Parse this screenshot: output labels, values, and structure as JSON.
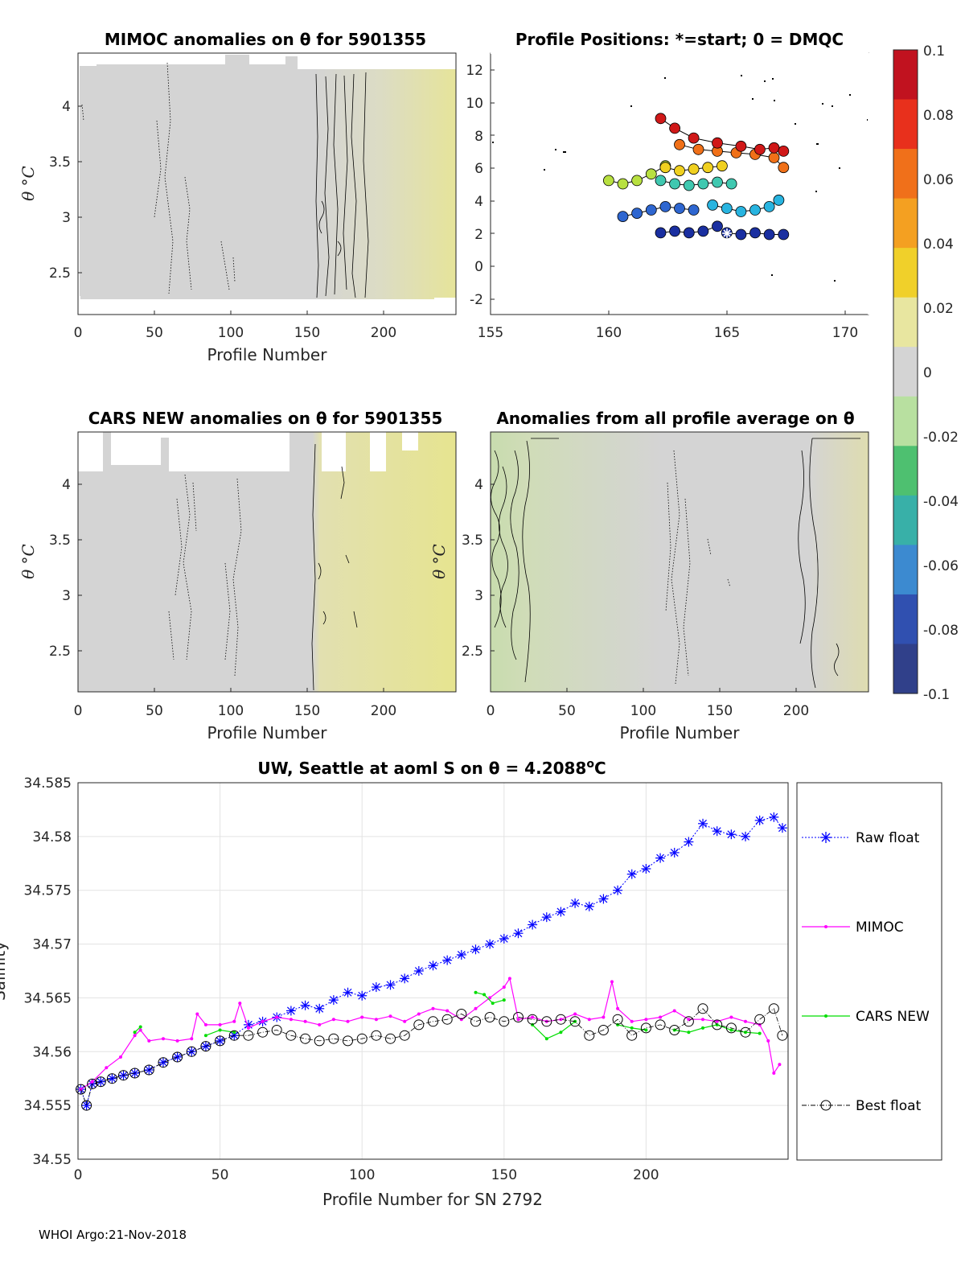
{
  "panels": {
    "mimoc": {
      "title": "MIMOC anomalies on θ  for 5901355",
      "xlabel": "Profile Number",
      "ylabel": "θ °C",
      "xticks": [
        "0",
        "50",
        "100",
        "150",
        "200"
      ],
      "yticks": [
        "2.5",
        "3",
        "3.5",
        "4"
      ]
    },
    "positions": {
      "title": "Profile Positions: *=start; 0 = DMQC",
      "xticks": [
        "155",
        "160",
        "165",
        "170"
      ],
      "yticks": [
        "-2",
        "0",
        "2",
        "4",
        "6",
        "8",
        "10",
        "12"
      ]
    },
    "cars": {
      "title": "CARS NEW anomalies on θ for 5901355",
      "xlabel": "Profile Number",
      "ylabel": "θ °C",
      "xticks": [
        "0",
        "50",
        "100",
        "150",
        "200"
      ],
      "yticks": [
        "2.5",
        "3",
        "3.5",
        "4"
      ]
    },
    "allavg": {
      "title": "Anomalies from all profile average on θ",
      "xlabel": "Profile Number",
      "ylabel": "θ °C",
      "xticks": [
        "0",
        "50",
        "100",
        "150",
        "200"
      ],
      "yticks": [
        "2.5",
        "3",
        "3.5",
        "4"
      ]
    }
  },
  "colorbar": {
    "ticks": [
      "0.1",
      "0.08",
      "0.06",
      "0.04",
      "0.02",
      "0",
      "-0.02",
      "-0.04",
      "-0.06",
      "-0.08",
      "-0.1"
    ],
    "colors": [
      "#c1121f",
      "#e8301c",
      "#f0701a",
      "#f4a021",
      "#f0d02a",
      "#e8e6a0",
      "#d4d4d4",
      "#b8e0a0",
      "#4ec070",
      "#38b0a8",
      "#3c8ad0",
      "#3050b0",
      "#30408a"
    ]
  },
  "footer": "WHOI Argo:21-Nov-2018",
  "chart_data": [
    {
      "type": "heatmap",
      "title": "MIMOC anomalies on θ  for 5901355",
      "xlabel": "Profile Number",
      "ylabel": "θ °C",
      "xlim": [
        0,
        248
      ],
      "ylim": [
        2.2,
        4.4
      ],
      "anomaly_sections": [
        {
          "from": 0,
          "to": 155,
          "value": 0.0
        },
        {
          "from": 155,
          "to": 200,
          "value": 0.005
        },
        {
          "from": 200,
          "to": 248,
          "value": 0.02
        }
      ]
    },
    {
      "type": "scatter",
      "title": "Profile Positions: *=start; 0 = DMQC",
      "xlim": [
        155,
        171
      ],
      "ylim": [
        -3,
        13
      ],
      "start_marker": {
        "lon": 165.0,
        "lat": 2.0
      },
      "tracks": [
        {
          "lons": [
            165.0,
            165.6,
            166.2,
            166.8,
            167.4
          ],
          "lats": [
            2.0,
            1.9,
            2.0,
            1.9,
            1.9
          ],
          "color": "#1a2fa0"
        },
        {
          "lons": [
            162.2,
            162.8,
            163.4,
            164.0,
            164.6
          ],
          "lats": [
            2.0,
            2.1,
            2.0,
            2.1,
            2.4
          ],
          "color": "#1a2fa0"
        },
        {
          "lons": [
            160.6,
            161.2,
            161.8,
            162.4,
            163.0,
            163.6
          ],
          "lats": [
            3.0,
            3.2,
            3.4,
            3.6,
            3.5,
            3.4
          ],
          "color": "#2e66d0"
        },
        {
          "lons": [
            164.4,
            165.0,
            165.6,
            166.2,
            166.8,
            167.2
          ],
          "lats": [
            3.7,
            3.5,
            3.3,
            3.4,
            3.6,
            4.0
          ],
          "color": "#28b4e0"
        },
        {
          "lons": [
            162.2,
            162.8,
            163.4,
            164.0,
            164.6,
            165.2
          ],
          "lats": [
            5.2,
            5.0,
            4.9,
            5.0,
            5.1,
            5.0
          ],
          "color": "#40c8b0"
        },
        {
          "lons": [
            160.0,
            160.6,
            161.2,
            161.8,
            162.4
          ],
          "lats": [
            5.2,
            5.0,
            5.2,
            5.6,
            6.1
          ],
          "color": "#b8e040"
        },
        {
          "lons": [
            162.4,
            163.0,
            163.6,
            164.2,
            164.8
          ],
          "lats": [
            6.0,
            5.8,
            5.9,
            6.0,
            6.1
          ],
          "color": "#f0d020"
        },
        {
          "lons": [
            163.0,
            163.8,
            164.6,
            165.4,
            166.2,
            167.0,
            167.4
          ],
          "lats": [
            7.4,
            7.1,
            7.0,
            6.9,
            6.8,
            6.6,
            6.0
          ],
          "color": "#f07018"
        },
        {
          "lons": [
            162.2,
            162.8,
            163.6,
            164.6,
            165.6,
            166.4,
            167.0,
            167.4
          ],
          "lats": [
            9.0,
            8.4,
            7.8,
            7.5,
            7.3,
            7.1,
            7.2,
            7.0
          ],
          "color": "#d01818"
        }
      ]
    },
    {
      "type": "heatmap",
      "title": "CARS NEW anomalies on θ for 5901355",
      "xlabel": "Profile Number",
      "ylabel": "θ °C",
      "xlim": [
        0,
        248
      ],
      "ylim": [
        2.1,
        4.4
      ],
      "anomaly_sections": [
        {
          "from": 0,
          "to": 155,
          "value": 0.0
        },
        {
          "from": 155,
          "to": 248,
          "value": 0.02
        }
      ]
    },
    {
      "type": "heatmap",
      "title": "Anomalies from all profile average on θ",
      "xlabel": "Profile Number",
      "ylabel": "θ °C",
      "xlim": [
        0,
        248
      ],
      "ylim": [
        2.1,
        4.4
      ],
      "anomaly_sections": [
        {
          "from": 0,
          "to": 25,
          "value": -0.01
        },
        {
          "from": 25,
          "to": 115,
          "value": -0.005
        },
        {
          "from": 115,
          "to": 210,
          "value": 0.0
        },
        {
          "from": 210,
          "to": 248,
          "value": 0.01
        }
      ]
    },
    {
      "type": "line",
      "title": "UW, Seattle at aoml S on θ = 4.2088°C",
      "title_text": "UW, Seattle at aoml S on θ = 4.2088",
      "title_sup": "o",
      "title_unit": "C",
      "xlabel": "Profile Number for SN 2792",
      "ylabel": "Salinity",
      "xlim": [
        0,
        250
      ],
      "ylim": [
        34.55,
        34.585
      ],
      "xticks": [
        "0",
        "50",
        "100",
        "150",
        "200"
      ],
      "yticks": [
        "34.55",
        "34.555",
        "34.56",
        "34.565",
        "34.57",
        "34.575",
        "34.58",
        "34.585"
      ],
      "legend": {
        "placement": "outside-right",
        "entries": [
          "Raw float",
          "MIMOC",
          "CARS NEW",
          "Best float"
        ]
      },
      "series": [
        {
          "name": "Raw float",
          "color": "#0000ff",
          "x": [
            1,
            3,
            5,
            8,
            12,
            16,
            20,
            25,
            30,
            35,
            40,
            45,
            50,
            55,
            60,
            65,
            70,
            75,
            80,
            85,
            90,
            95,
            100,
            105,
            110,
            115,
            120,
            125,
            130,
            135,
            140,
            145,
            150,
            155,
            160,
            165,
            170,
            175,
            180,
            185,
            190,
            195,
            200,
            205,
            210,
            215,
            220,
            225,
            230,
            235,
            240,
            245,
            248
          ],
          "y": [
            34.5565,
            34.555,
            34.557,
            34.5572,
            34.5575,
            34.5578,
            34.558,
            34.5583,
            34.559,
            34.5595,
            34.56,
            34.5605,
            34.561,
            34.5615,
            34.5625,
            34.5628,
            34.5632,
            34.5638,
            34.5643,
            34.564,
            34.5648,
            34.5655,
            34.5652,
            34.566,
            34.5662,
            34.5668,
            34.5675,
            34.568,
            34.5685,
            34.569,
            34.5695,
            34.57,
            34.5705,
            34.571,
            34.5718,
            34.5725,
            34.573,
            34.5738,
            34.5735,
            34.5742,
            34.575,
            34.5765,
            34.577,
            34.578,
            34.5785,
            34.5795,
            34.5812,
            34.5805,
            34.5802,
            34.58,
            34.5815,
            34.5818,
            34.5808
          ]
        },
        {
          "name": "MIMOC",
          "color": "#ff00ff",
          "x": [
            1,
            5,
            10,
            15,
            20,
            22,
            25,
            30,
            35,
            40,
            42,
            45,
            50,
            55,
            57,
            60,
            65,
            70,
            75,
            80,
            85,
            90,
            95,
            100,
            105,
            110,
            115,
            120,
            125,
            130,
            135,
            140,
            145,
            150,
            152,
            155,
            160,
            165,
            170,
            175,
            180,
            185,
            188,
            190,
            195,
            200,
            205,
            210,
            215,
            220,
            225,
            230,
            235,
            240,
            243,
            245,
            247
          ],
          "y": [
            34.5565,
            34.5572,
            34.5585,
            34.5595,
            34.5615,
            34.562,
            34.561,
            34.5612,
            34.561,
            34.5612,
            34.5635,
            34.5625,
            34.5625,
            34.5628,
            34.5645,
            34.5622,
            34.5628,
            34.5632,
            34.563,
            34.5628,
            34.5625,
            34.563,
            34.5628,
            34.5632,
            34.563,
            34.5633,
            34.5628,
            34.5635,
            34.564,
            34.5638,
            34.563,
            34.564,
            34.565,
            34.566,
            34.5668,
            34.563,
            34.5632,
            34.5628,
            34.563,
            34.5635,
            34.563,
            34.5632,
            34.5665,
            34.564,
            34.5628,
            34.563,
            34.5632,
            34.5638,
            34.563,
            34.563,
            34.5628,
            34.5632,
            34.5628,
            34.5625,
            34.561,
            34.558,
            34.5588
          ]
        },
        {
          "name": "CARS NEW",
          "color": "#00dd00",
          "segments": [
            {
              "x": [
                20,
                22
              ],
              "y": [
                34.5618,
                34.5623
              ]
            },
            {
              "x": [
                45,
                50,
                55
              ],
              "y": [
                34.5615,
                34.562,
                34.5618
              ]
            },
            {
              "x": [
                140,
                143,
                146,
                150
              ],
              "y": [
                34.5655,
                34.5653,
                34.5645,
                34.5648
              ]
            },
            {
              "x": [
                160,
                165,
                170,
                175
              ],
              "y": [
                34.5625,
                34.5612,
                34.5618,
                34.5628
              ]
            },
            {
              "x": [
                190,
                195,
                200
              ],
              "y": [
                34.5625,
                34.5622,
                34.562
              ]
            },
            {
              "x": [
                210,
                215,
                220,
                225,
                230,
                235,
                240
              ],
              "y": [
                34.562,
                34.5618,
                34.5622,
                34.5625,
                34.562,
                34.5618,
                34.5617
              ]
            }
          ]
        },
        {
          "name": "Best float",
          "color": "#000000",
          "x": [
            1,
            3,
            5,
            8,
            12,
            16,
            20,
            25,
            30,
            35,
            40,
            45,
            50,
            55,
            60,
            65,
            70,
            75,
            80,
            85,
            90,
            95,
            100,
            105,
            110,
            115,
            120,
            125,
            130,
            135,
            140,
            145,
            150,
            155,
            160,
            165,
            170,
            175,
            180,
            185,
            190,
            195,
            200,
            205,
            210,
            215,
            220,
            225,
            230,
            235,
            240,
            245,
            248
          ],
          "y": [
            34.5565,
            34.555,
            34.557,
            34.5572,
            34.5575,
            34.5578,
            34.558,
            34.5583,
            34.559,
            34.5595,
            34.56,
            34.5605,
            34.561,
            34.5615,
            34.5615,
            34.5618,
            34.562,
            34.5615,
            34.5612,
            34.561,
            34.5612,
            34.561,
            34.5612,
            34.5615,
            34.5612,
            34.5615,
            34.5625,
            34.5628,
            34.563,
            34.5635,
            34.5628,
            34.5632,
            34.5628,
            34.5632,
            34.563,
            34.5628,
            34.563,
            34.5628,
            34.5615,
            34.562,
            34.563,
            34.5615,
            34.5622,
            34.5625,
            34.562,
            34.5628,
            34.564,
            34.5625,
            34.5622,
            34.5618,
            34.563,
            34.564,
            34.5615
          ]
        }
      ]
    }
  ]
}
